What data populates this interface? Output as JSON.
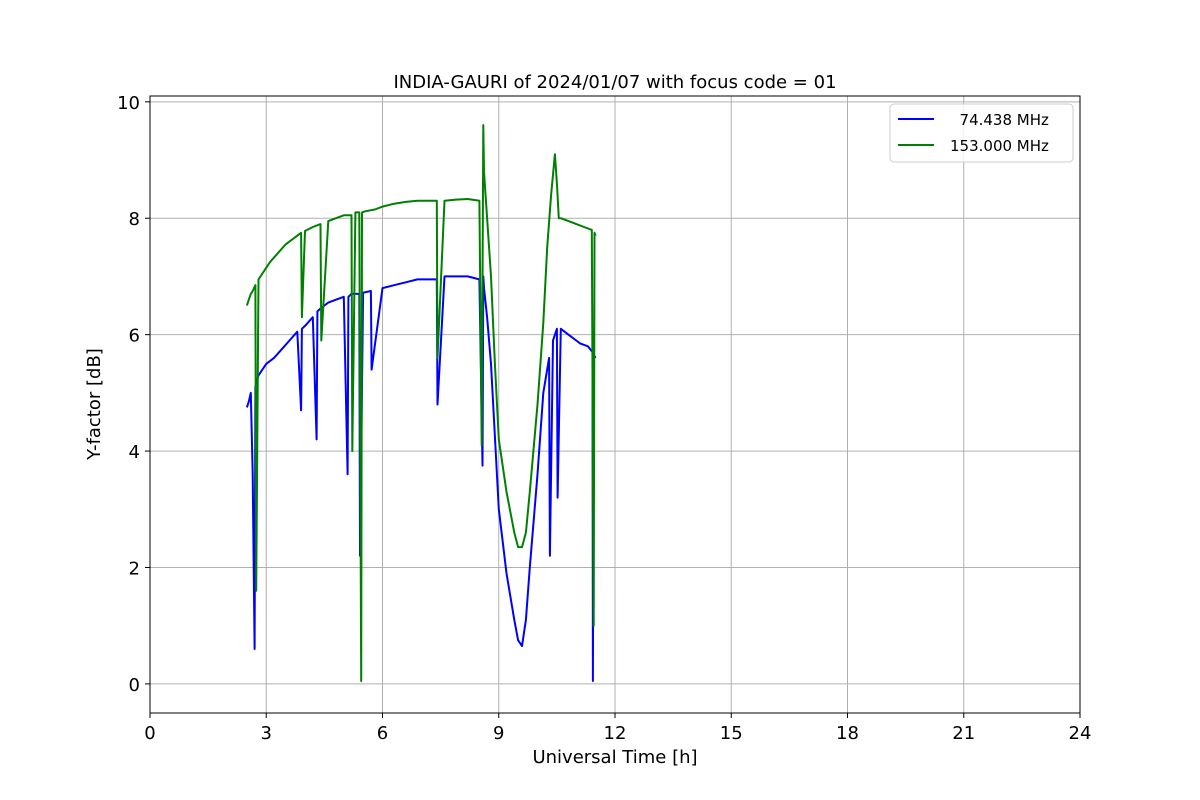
{
  "chart_data": {
    "type": "line",
    "title": "INDIA-GAURI of 2024/01/07 with focus code = 01",
    "xlabel": "Universal Time [h]",
    "ylabel": "Y-factor [dB]",
    "xlim": [
      0,
      24
    ],
    "ylim": [
      -0.5,
      10.1
    ],
    "xticks": [
      0,
      3,
      6,
      9,
      12,
      15,
      18,
      21,
      24
    ],
    "xtick_labels": [
      "0",
      "3",
      "6",
      "9",
      "12",
      "15",
      "18",
      "21",
      "24"
    ],
    "yticks": [
      0,
      2,
      4,
      6,
      8,
      10
    ],
    "ytick_labels": [
      "0",
      "2",
      "4",
      "6",
      "8",
      "10"
    ],
    "grid": true,
    "legend_position": "top-right",
    "series": [
      {
        "name": "  74.438 MHz",
        "color": "#0000ff",
        "x": [
          2.5,
          2.55,
          2.6,
          2.65,
          2.7,
          2.72,
          2.75,
          2.8,
          2.9,
          3.0,
          3.2,
          3.4,
          3.6,
          3.8,
          3.9,
          3.92,
          4.0,
          4.2,
          4.3,
          4.32,
          4.4,
          4.6,
          4.8,
          5.0,
          5.1,
          5.12,
          5.2,
          5.4,
          5.42,
          5.5,
          5.7,
          5.72,
          6.0,
          6.3,
          6.6,
          6.9,
          7.2,
          7.4,
          7.42,
          7.6,
          7.9,
          8.2,
          8.5,
          8.58,
          8.6,
          8.62,
          8.7,
          8.8,
          9.0,
          9.2,
          9.4,
          9.5,
          9.6,
          9.7,
          9.8,
          10.0,
          10.15,
          10.3,
          10.32,
          10.4,
          10.5,
          10.52,
          10.6,
          10.8,
          11.0,
          11.1,
          11.3,
          11.42,
          11.43,
          11.45,
          11.5
        ],
        "y": [
          4.75,
          4.85,
          5.0,
          3.6,
          0.6,
          5.1,
          5.2,
          5.3,
          5.4,
          5.5,
          5.6,
          5.75,
          5.9,
          6.05,
          4.7,
          6.1,
          6.15,
          6.3,
          4.2,
          6.4,
          6.45,
          6.55,
          6.6,
          6.65,
          3.6,
          6.65,
          6.7,
          6.7,
          2.2,
          6.72,
          6.75,
          5.4,
          6.8,
          6.85,
          6.9,
          6.95,
          6.95,
          6.95,
          4.8,
          7.0,
          7.0,
          7.0,
          6.95,
          3.75,
          7.0,
          6.8,
          6.3,
          5.5,
          3.0,
          1.9,
          1.1,
          0.75,
          0.65,
          1.1,
          2.0,
          3.6,
          5.0,
          5.6,
          2.2,
          5.9,
          6.1,
          3.2,
          6.1,
          6.0,
          5.9,
          5.85,
          5.8,
          5.7,
          0.05,
          5.65,
          5.6
        ]
      },
      {
        "name": "153.000 MHz",
        "color": "#008000",
        "x": [
          2.5,
          2.55,
          2.6,
          2.65,
          2.72,
          2.74,
          2.8,
          2.9,
          3.0,
          3.1,
          3.3,
          3.5,
          3.7,
          3.9,
          3.92,
          4.0,
          4.2,
          4.4,
          4.42,
          4.6,
          4.8,
          5.0,
          5.2,
          5.22,
          5.3,
          5.4,
          5.45,
          5.47,
          5.55,
          5.8,
          6.0,
          6.3,
          6.6,
          6.9,
          7.2,
          7.4,
          7.42,
          7.6,
          7.9,
          8.2,
          8.5,
          8.56,
          8.6,
          8.62,
          8.7,
          8.8,
          8.9,
          9.0,
          9.2,
          9.4,
          9.5,
          9.6,
          9.7,
          9.8,
          10.0,
          10.15,
          10.25,
          10.35,
          10.45,
          10.5,
          10.55,
          10.6,
          10.8,
          11.0,
          11.2,
          11.4,
          11.45,
          11.47,
          11.5
        ],
        "y": [
          6.5,
          6.6,
          6.7,
          6.75,
          6.85,
          1.6,
          6.95,
          7.05,
          7.15,
          7.25,
          7.4,
          7.55,
          7.65,
          7.75,
          6.3,
          7.78,
          7.85,
          7.9,
          5.9,
          7.95,
          8.0,
          8.05,
          8.05,
          4.0,
          8.1,
          8.1,
          0.05,
          8.1,
          8.12,
          8.15,
          8.2,
          8.25,
          8.28,
          8.3,
          8.3,
          8.3,
          5.6,
          8.3,
          8.32,
          8.33,
          8.3,
          4.1,
          9.6,
          8.8,
          8.0,
          7.0,
          5.5,
          4.2,
          3.3,
          2.6,
          2.35,
          2.35,
          2.6,
          3.3,
          4.8,
          6.2,
          7.5,
          8.4,
          9.1,
          8.6,
          8.0,
          8.0,
          7.95,
          7.9,
          7.85,
          7.8,
          1.0,
          7.75,
          7.7
        ]
      }
    ]
  }
}
